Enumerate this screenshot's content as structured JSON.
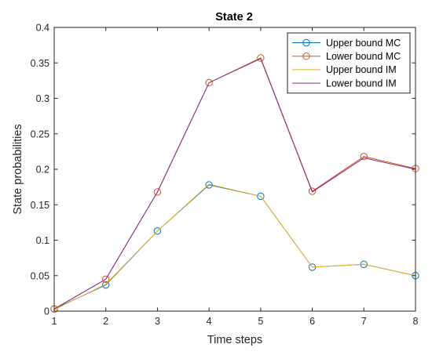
{
  "chart_data": {
    "type": "line",
    "title": "State 2",
    "xlabel": "Time steps",
    "ylabel": "State probabilities",
    "x": [
      1,
      2,
      3,
      4,
      5,
      6,
      7,
      8
    ],
    "xlim": [
      1,
      8
    ],
    "ylim": [
      0,
      0.4
    ],
    "xticks": [
      "1",
      "2",
      "3",
      "4",
      "5",
      "6",
      "7",
      "8"
    ],
    "yticks": [
      "0",
      "0.05",
      "0.1",
      "0.15",
      "0.2",
      "0.25",
      "0.3",
      "0.35",
      "0.4"
    ],
    "grid": false,
    "legend_position": "top-right",
    "series": [
      {
        "name": "Upper bound MC",
        "color": "#0072BD",
        "marker": "circle",
        "values": [
          0.003,
          0.037,
          0.113,
          0.178,
          0.162,
          0.062,
          0.066,
          0.05
        ]
      },
      {
        "name": "Lower bound MC",
        "color": "#D95319",
        "marker": "circle",
        "values": [
          0.003,
          0.045,
          0.168,
          0.322,
          0.357,
          0.169,
          0.218,
          0.201
        ]
      },
      {
        "name": "Upper bound IM",
        "color": "#EDB120",
        "marker": "none",
        "values": [
          0.002,
          0.038,
          0.113,
          0.179,
          0.162,
          0.062,
          0.066,
          0.05
        ]
      },
      {
        "name": "Lower bound IM",
        "color": "#7E2F8E",
        "marker": "none",
        "values": [
          0.003,
          0.045,
          0.168,
          0.322,
          0.356,
          0.168,
          0.216,
          0.2
        ]
      }
    ]
  }
}
